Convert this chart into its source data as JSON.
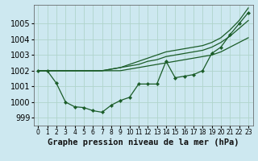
{
  "xlabel": "Graphe pression niveau de la mer (hPa)",
  "background_color": "#cde8f0",
  "grid_color": "#b0d4cc",
  "line_color": "#1a5c28",
  "xlim": [
    -0.5,
    23.5
  ],
  "ylim": [
    998.5,
    1006.2
  ],
  "yticks": [
    999,
    1000,
    1001,
    1002,
    1003,
    1004,
    1005
  ],
  "xticks": [
    0,
    1,
    2,
    3,
    4,
    5,
    6,
    7,
    8,
    9,
    10,
    11,
    12,
    13,
    14,
    15,
    16,
    17,
    18,
    19,
    20,
    21,
    22,
    23
  ],
  "smooth_line1": [
    1002,
    1002,
    1002,
    1002,
    1002,
    1002,
    1002,
    1002,
    1002,
    1002,
    1002.1,
    1002.2,
    1002.3,
    1002.4,
    1002.5,
    1002.6,
    1002.7,
    1002.8,
    1002.9,
    1003.0,
    1003.2,
    1003.5,
    1003.8,
    1004.1
  ],
  "smooth_line2": [
    1002,
    1002,
    1002,
    1002,
    1002,
    1002,
    1002,
    1002,
    1002.1,
    1002.2,
    1002.3,
    1002.4,
    1002.6,
    1002.7,
    1002.9,
    1003.0,
    1003.1,
    1003.2,
    1003.3,
    1003.5,
    1003.8,
    1004.2,
    1004.7,
    1005.2
  ],
  "smooth_line3": [
    1002,
    1002,
    1002,
    1002,
    1002,
    1002,
    1002,
    1002,
    1002.1,
    1002.2,
    1002.4,
    1002.6,
    1002.8,
    1003.0,
    1003.2,
    1003.3,
    1003.4,
    1003.5,
    1003.6,
    1003.8,
    1004.1,
    1004.6,
    1005.2,
    1006.0
  ],
  "zigzag_line": [
    1002.0,
    1002.0,
    1001.2,
    1000.0,
    999.7,
    999.65,
    999.45,
    999.35,
    999.8,
    1000.1,
    1000.3,
    1001.15,
    1001.15,
    1001.15,
    1002.6,
    1001.55,
    1001.65,
    1001.75,
    1002.0,
    1003.1,
    1003.5,
    1004.3,
    1005.0,
    1005.7
  ],
  "font_size_xlabel": 7.5,
  "font_size_ytick": 7,
  "font_size_xtick": 5.5
}
